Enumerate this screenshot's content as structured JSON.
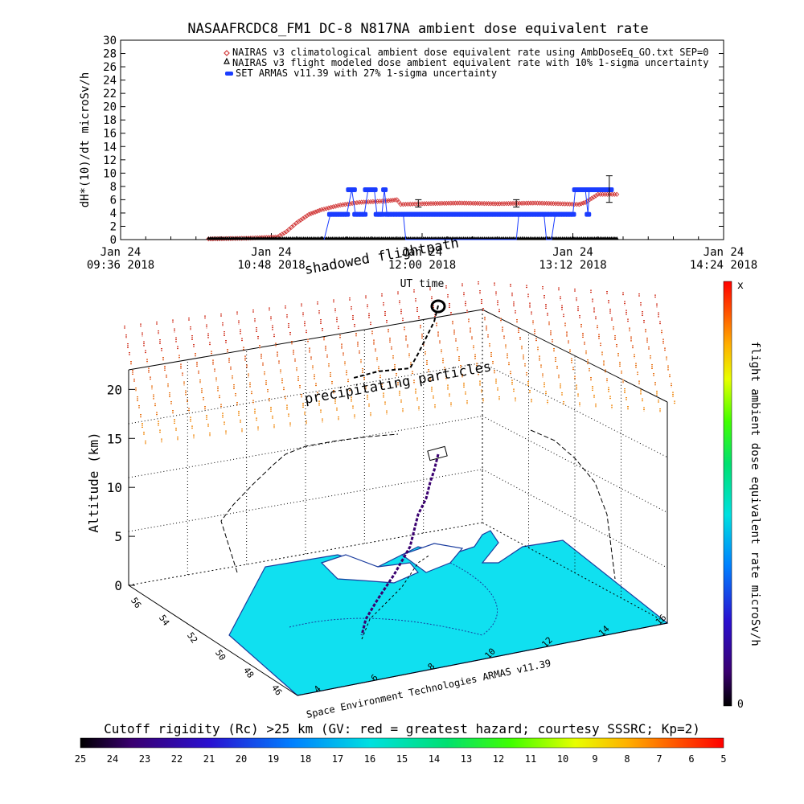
{
  "title": "NASAAFRCDC8_FM1 DC-8   N817NA ambient dose equivalent rate",
  "legend": [
    {
      "label": "NAIRAS v3 climatological ambient dose equivalent rate using AmbDoseEq_GO.txt SEP=0",
      "color": "#d23c3c",
      "marker": "diamond"
    },
    {
      "label": "NAIRAS v3 flight modeled dose ambient equivalent rate with 10% 1-sigma uncertainty",
      "color": "#000000",
      "marker": "triangle"
    },
    {
      "label": "SET ARMAS v11.39 with 27% 1-sigma uncertainty",
      "color": "#1a3cff",
      "marker": "circle"
    }
  ],
  "chart_data": [
    {
      "type": "line",
      "title": "NASAAFRCDC8_FM1 DC-8   N817NA ambient dose equivalent rate",
      "xlabel": "UT time",
      "ylabel": "dH*(10)/dt microSv/h",
      "ylim": [
        0,
        30
      ],
      "yticks": [
        0,
        2,
        4,
        6,
        8,
        10,
        12,
        14,
        16,
        18,
        20,
        22,
        24,
        26,
        28,
        30
      ],
      "xticks": [
        {
          "line1": "Jan 24",
          "line2": "09:36 2018",
          "hours": 9.6
        },
        {
          "line1": "Jan 24",
          "line2": "10:48 2018",
          "hours": 10.8
        },
        {
          "line1": "Jan 24",
          "line2": "12:00 2018",
          "hours": 12.0
        },
        {
          "line1": "Jan 24",
          "line2": "13:12 2018",
          "hours": 13.2
        },
        {
          "line1": "Jan 24",
          "line2": "14:24 2018",
          "hours": 14.4
        }
      ],
      "xlim_hours": [
        9.6,
        14.4
      ],
      "series": [
        {
          "key": "climatological",
          "color": "#d23c3c",
          "points": [
            [
              10.3,
              0.1
            ],
            [
              10.6,
              0.2
            ],
            [
              10.85,
              0.4
            ],
            [
              10.92,
              1.2
            ],
            [
              11.0,
              2.5
            ],
            [
              11.1,
              3.8
            ],
            [
              11.2,
              4.5
            ],
            [
              11.35,
              5.2
            ],
            [
              11.5,
              5.6
            ],
            [
              11.7,
              5.8
            ],
            [
              11.8,
              6.0
            ],
            [
              11.83,
              5.3
            ],
            [
              12.0,
              5.4
            ],
            [
              12.3,
              5.5
            ],
            [
              12.6,
              5.4
            ],
            [
              12.9,
              5.5
            ],
            [
              13.1,
              5.4
            ],
            [
              13.25,
              5.3
            ],
            [
              13.3,
              5.6
            ],
            [
              13.35,
              6.2
            ],
            [
              13.4,
              6.8
            ],
            [
              13.55,
              6.8
            ]
          ]
        },
        {
          "key": "modeled",
          "color": "#000000",
          "points": [
            [
              10.3,
              0.0
            ],
            [
              10.8,
              0.0
            ],
            [
              11.3,
              0.0
            ],
            [
              11.8,
              0.0
            ],
            [
              12.3,
              0.0
            ],
            [
              12.8,
              0.0
            ],
            [
              13.3,
              0.0
            ],
            [
              13.55,
              0.0
            ]
          ]
        },
        {
          "key": "armas",
          "color": "#1a3cff",
          "points": [
            [
              11.22,
              0.0
            ],
            [
              11.27,
              3.8
            ],
            [
              11.4,
              3.8
            ],
            [
              11.44,
              7.5
            ],
            [
              11.47,
              3.8
            ],
            [
              11.54,
              3.8
            ],
            [
              11.57,
              7.5
            ],
            [
              11.62,
              7.5
            ],
            [
              11.64,
              3.8
            ],
            [
              11.68,
              3.8
            ],
            [
              11.7,
              7.5
            ],
            [
              11.72,
              3.8
            ],
            [
              11.85,
              3.8
            ],
            [
              11.87,
              0.0
            ],
            [
              12.75,
              0.0
            ],
            [
              12.77,
              3.8
            ],
            [
              12.97,
              3.8
            ],
            [
              12.99,
              0.0
            ],
            [
              13.03,
              0.0
            ],
            [
              13.06,
              3.8
            ],
            [
              13.2,
              3.8
            ],
            [
              13.22,
              7.5
            ],
            [
              13.3,
              7.5
            ],
            [
              13.32,
              3.8
            ],
            [
              13.33,
              7.5
            ],
            [
              13.5,
              7.5
            ]
          ]
        }
      ],
      "error_bars": [
        {
          "hours": 11.97,
          "value": 5.4,
          "low": 4.9,
          "high": 6.0
        },
        {
          "hours": 12.75,
          "value": 5.4,
          "low": 4.9,
          "high": 6.0
        },
        {
          "hours": 13.49,
          "value": 7.5,
          "low": 5.6,
          "high": 9.6
        }
      ]
    },
    {
      "type": "scatter",
      "subtype": "3d-flight-path",
      "zlabel": "Altitude (km)",
      "zlim": [
        0,
        22
      ],
      "zticks": [
        0,
        5,
        10,
        15,
        20
      ],
      "lon_ticks": [
        4,
        6,
        8,
        10,
        12,
        14,
        16
      ],
      "lat_ticks": [
        46,
        48,
        50,
        52,
        54,
        56
      ],
      "annotations": [
        "shadowed flightpath",
        "precipitating particles"
      ],
      "footer": "Space Environment Technologies ARMAS v11.39",
      "colorbar": {
        "label": "flight ambient dose equivalent rate microSv/h",
        "top_label": "x",
        "bottom_label": "0"
      },
      "rigidity_bar": {
        "label": "Cutoff rigidity (Rc) >25 km (GV: red = greatest hazard; courtesy SSSRC; Kp=2)",
        "ticks": [
          "25",
          "24",
          "23",
          "22",
          "21",
          "20",
          "19",
          "18",
          "17",
          "16",
          "15",
          "14",
          "13",
          "12",
          "11",
          "10",
          "9",
          "8",
          "7",
          "6",
          "5"
        ]
      }
    }
  ]
}
